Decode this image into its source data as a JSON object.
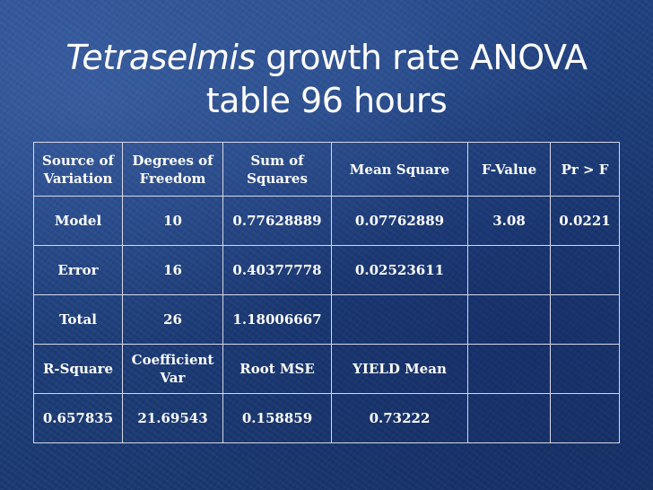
{
  "slide": {
    "title_italic": "Tetraselmis",
    "title_rest": " growth rate ANOVA",
    "title_line2": "table 96 hours"
  },
  "table": {
    "header": [
      "Source of Variation",
      "Degrees of Freedom",
      "Sum of Squares",
      "Mean Square",
      "F-Value",
      "Pr > F"
    ],
    "header_lines": [
      [
        "Source of",
        "Variation"
      ],
      [
        "Degrees of",
        "Freedom"
      ],
      [
        "Sum of",
        "Squares"
      ],
      [
        "Mean Square"
      ],
      [
        "F-Value"
      ],
      [
        "Pr > F"
      ]
    ],
    "rows": [
      [
        "Model",
        "10",
        "0.77628889",
        "0.07762889",
        "3.08",
        "0.0221"
      ],
      [
        "Error",
        "16",
        "0.40377778",
        "0.02523611",
        "",
        ""
      ],
      [
        "Total",
        "26",
        "1.18006667",
        "",
        "",
        ""
      ]
    ],
    "stats_header_lines": [
      [
        "R-Square"
      ],
      [
        "Coefficient",
        "Var"
      ],
      [
        "Root MSE"
      ],
      [
        "YIELD Mean"
      ],
      [
        ""
      ],
      [
        ""
      ]
    ],
    "stats_values": [
      "0.657835",
      "21.69543",
      "0.158859",
      "0.73222",
      "",
      ""
    ]
  }
}
